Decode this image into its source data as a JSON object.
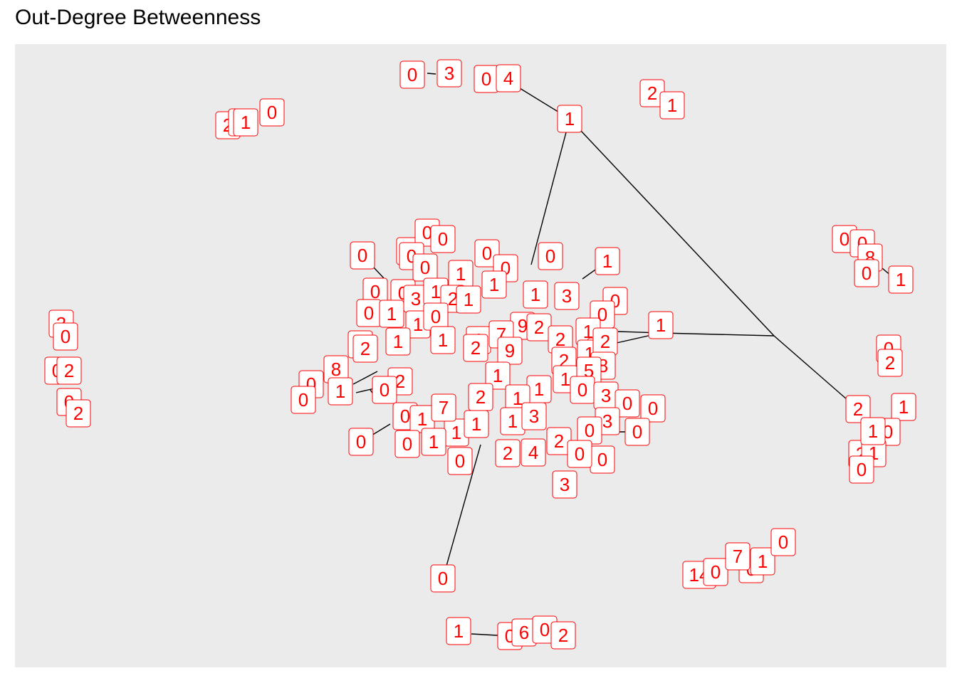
{
  "title": "Out-Degree Betweenness",
  "colors": {
    "panel": "#ebebeb",
    "label_text": "#ff0000",
    "label_border": "#ff0000",
    "edge": "#000000"
  },
  "chart_data": {
    "type": "network",
    "title": "Out-Degree Betweenness",
    "node_labels": [
      "0",
      "3",
      "0",
      "4",
      "1",
      "2",
      "0",
      "1",
      "2",
      "1",
      "0",
      "0",
      "0",
      "8",
      "0",
      "1",
      "3",
      "0",
      "0",
      "2",
      "0",
      "2",
      "0",
      "2",
      "2",
      "1",
      "0",
      "2",
      "1",
      "1",
      "0",
      "14",
      "0",
      "0",
      "7",
      "1",
      "0",
      "1",
      "0",
      "6",
      "0",
      "2",
      "0",
      "0",
      "0",
      "0",
      "0",
      "0",
      "1",
      "0",
      "0",
      "0",
      "1",
      "0",
      "0",
      "3",
      "1",
      "2",
      "1",
      "1",
      "1",
      "3",
      "0",
      "0",
      "1",
      "1",
      "0",
      "0",
      "1",
      "9",
      "7",
      "2",
      "2",
      "1",
      "1",
      "0",
      "2",
      "1",
      "1",
      "2",
      "9",
      "2",
      "1",
      "1",
      "2",
      "8",
      "8",
      "0",
      "1",
      "2",
      "1",
      "1",
      "1",
      "5",
      "0",
      "3",
      "0",
      "0",
      "0",
      "0",
      "1",
      "1",
      "7",
      "1",
      "1",
      "1",
      "2",
      "3",
      "0",
      "0",
      "0",
      "1",
      "0",
      "0",
      "2",
      "4",
      "2",
      "3",
      "0",
      "0",
      "3",
      "0",
      "0"
    ]
  }
}
